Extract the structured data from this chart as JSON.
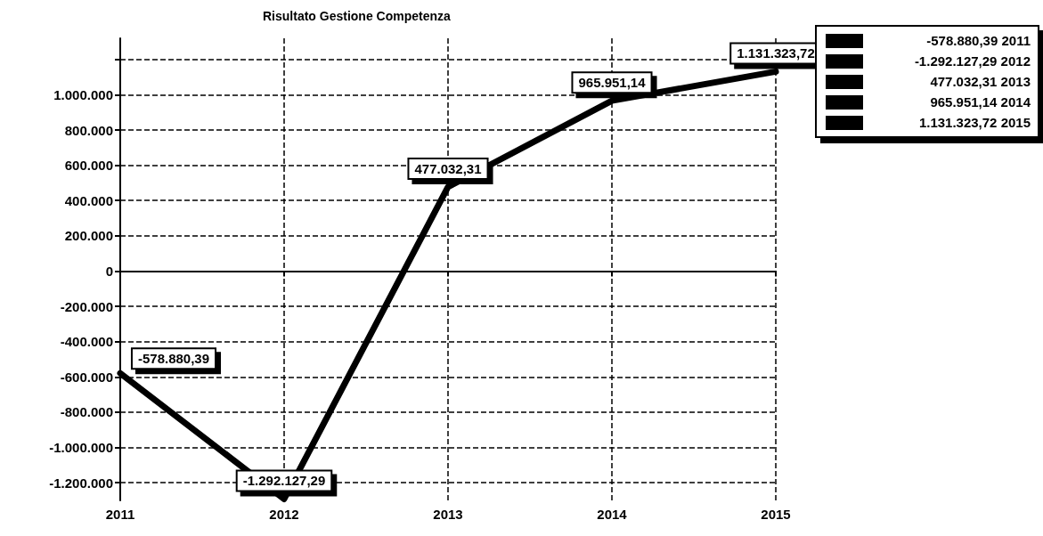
{
  "chart_data": {
    "type": "line",
    "title": "Risultato Gestione Competenza",
    "x": [
      2011,
      2012,
      2013,
      2014,
      2015
    ],
    "xlim": [
      2011,
      2015
    ],
    "xticks": [
      2011,
      2012,
      2013,
      2014,
      2015
    ],
    "series": [
      {
        "color": "#000000",
        "values": [
          -578880.39,
          -1292127.29,
          477032.31,
          965951.14,
          1131323.72
        ],
        "value_labels": [
          "-578.880,39",
          "-1.292.127,29",
          "477.032,31",
          "965.951,14",
          "1.131.323,72"
        ]
      }
    ],
    "ylim": [
      -1300000,
      1320000
    ],
    "yticks": [
      {
        "value": -1200000,
        "label": "-1.200.000"
      },
      {
        "value": -1000000,
        "label": "-1.000.000"
      },
      {
        "value": -800000,
        "label": "-800.000"
      },
      {
        "value": -600000,
        "label": "-600.000"
      },
      {
        "value": -400000,
        "label": "-400.000"
      },
      {
        "value": -200000,
        "label": "-200.000"
      },
      0,
      {
        "value": 200000,
        "label": "200.000"
      },
      {
        "value": 400000,
        "label": "400.000"
      },
      {
        "value": 600000,
        "label": "600.000"
      },
      {
        "value": 800000,
        "label": "800.000"
      },
      {
        "value": 1000000,
        "label": "1.000.000"
      },
      {
        "value": 1200000,
        "label": null
      }
    ],
    "annotations": [
      "-578.880,39 2011",
      "-1.292.127,29 2012",
      "477.032,31 2013",
      "965.951,14 2014",
      "1.131.323,72 2015"
    ],
    "grid": true,
    "marker": "none",
    "line_style": "solid"
  }
}
